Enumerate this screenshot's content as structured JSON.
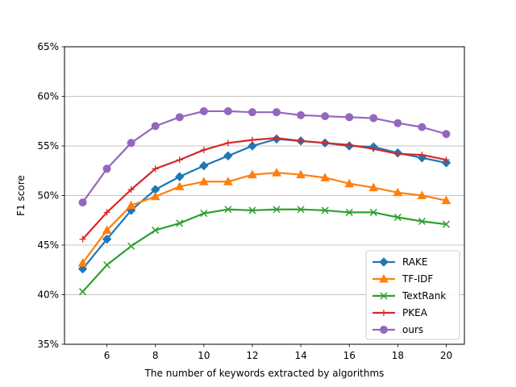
{
  "chart_data": {
    "type": "line",
    "title": "",
    "xlabel": "The number of keywords extracted by algorithms",
    "ylabel": "F1 score",
    "xlim": [
      4.25,
      20.75
    ],
    "ylim": [
      35,
      65
    ],
    "x_ticks": [
      6,
      8,
      10,
      12,
      14,
      16,
      18,
      20
    ],
    "y_ticks": [
      35,
      40,
      45,
      50,
      55,
      60,
      65
    ],
    "x_tick_labels": [
      "6",
      "8",
      "10",
      "12",
      "14",
      "16",
      "18",
      "20"
    ],
    "y_tick_labels": [
      "35%",
      "40%",
      "45%",
      "50%",
      "55%",
      "60%",
      "65%"
    ],
    "grid": "horizontal",
    "legend": "bottom-right",
    "x": [
      5,
      6,
      7,
      8,
      9,
      10,
      11,
      12,
      13,
      14,
      15,
      16,
      17,
      18,
      19,
      20
    ],
    "series": [
      {
        "name": "RAKE",
        "color": "#1f77b4",
        "marker": "diamond",
        "values": [
          42.6,
          45.6,
          48.5,
          50.6,
          51.9,
          53.0,
          54.0,
          55.0,
          55.7,
          55.5,
          55.3,
          55.0,
          54.9,
          54.3,
          53.8,
          53.3
        ]
      },
      {
        "name": "TF-IDF",
        "color": "#ff7f0e",
        "marker": "triangle",
        "values": [
          43.2,
          46.5,
          49.0,
          49.9,
          50.9,
          51.4,
          51.4,
          52.1,
          52.3,
          52.1,
          51.8,
          51.2,
          50.8,
          50.3,
          50.0,
          49.5
        ]
      },
      {
        "name": "TextRank",
        "color": "#2ca02c",
        "marker": "x",
        "values": [
          40.3,
          43.0,
          44.9,
          46.5,
          47.2,
          48.2,
          48.6,
          48.5,
          48.6,
          48.6,
          48.5,
          48.3,
          48.3,
          47.8,
          47.4,
          47.1
        ]
      },
      {
        "name": "PKEA",
        "color": "#d62728",
        "marker": "plus",
        "values": [
          45.6,
          48.3,
          50.6,
          52.7,
          53.6,
          54.6,
          55.3,
          55.6,
          55.8,
          55.5,
          55.3,
          55.1,
          54.7,
          54.2,
          54.1,
          53.6
        ]
      },
      {
        "name": "ours",
        "color": "#9467bd",
        "marker": "circle",
        "values": [
          49.3,
          52.7,
          55.3,
          57.0,
          57.9,
          58.5,
          58.5,
          58.4,
          58.4,
          58.1,
          58.0,
          57.9,
          57.8,
          57.3,
          56.9,
          56.2
        ]
      }
    ]
  }
}
